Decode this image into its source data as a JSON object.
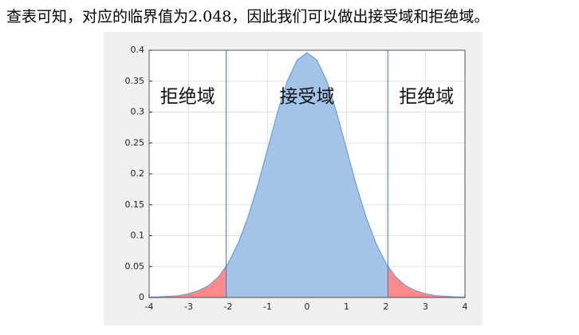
{
  "text": "查表可知，对应的临界值为2.048，因此我们可以做出接受域和拒绝域。",
  "chart_data": {
    "type": "area",
    "x": [
      -4,
      -3.75,
      -3.5,
      -3.25,
      -3,
      -2.75,
      -2.5,
      -2.25,
      -2,
      -1.75,
      -1.5,
      -1.25,
      -1,
      -0.75,
      -0.5,
      -0.25,
      0,
      0.25,
      0.5,
      0.75,
      1,
      1.25,
      1.5,
      1.75,
      2,
      2.25,
      2.5,
      2.75,
      3,
      3.25,
      3.5,
      3.75,
      4
    ],
    "values": [
      0.0005,
      0.001,
      0.002,
      0.003,
      0.006,
      0.011,
      0.019,
      0.033,
      0.055,
      0.087,
      0.129,
      0.181,
      0.24,
      0.299,
      0.35,
      0.384,
      0.396,
      0.384,
      0.35,
      0.299,
      0.24,
      0.181,
      0.129,
      0.087,
      0.055,
      0.033,
      0.019,
      0.011,
      0.006,
      0.003,
      0.002,
      0.001,
      0.0005
    ],
    "xlim": [
      -4,
      4
    ],
    "ylim": [
      0,
      0.4
    ],
    "xticks": [
      -4,
      -3,
      -2,
      -1,
      0,
      1,
      2,
      3,
      4
    ],
    "yticks": [
      0,
      0.05,
      0.1,
      0.15,
      0.2,
      0.25,
      0.3,
      0.35,
      0.4
    ],
    "grid": true,
    "critical_lines": [
      -2.048,
      2.048
    ],
    "color": "#a3c4e8",
    "line_color": "#6a9fd6",
    "tail_color": "#ff8a8a",
    "region_labels": [
      "拒绝域",
      "接受域",
      "拒绝域"
    ]
  }
}
